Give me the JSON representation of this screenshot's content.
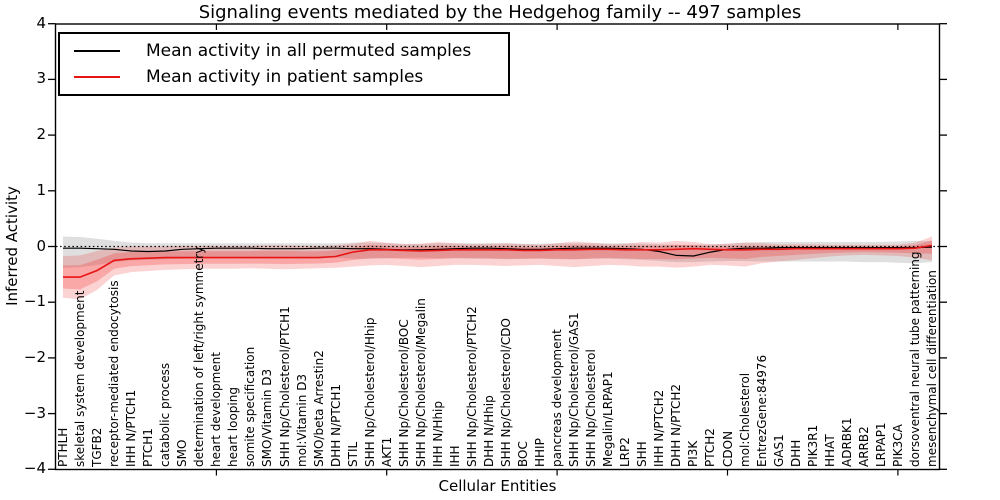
{
  "title": "Signaling events mediated by the Hedgehog family -- 497 samples",
  "legend": {
    "items": [
      {
        "label": "Mean activity in all permuted samples",
        "color": "#000000"
      },
      {
        "label": "Mean activity in patient samples",
        "color": "#e81414"
      }
    ]
  },
  "axes": {
    "ylabel": "Inferred Activity",
    "xlabel": "Cellular Entities",
    "ytick_labels": [
      "4",
      "3",
      "2",
      "1",
      "0",
      "−1",
      "−2",
      "−3",
      "−4"
    ],
    "ytick_values": [
      4,
      3,
      2,
      1,
      0,
      -1,
      -2,
      -3,
      -4
    ]
  },
  "colors": {
    "permuted_line": "#000000",
    "patient_line": "#e81414",
    "permuted_band": "#aaaaaa",
    "patient_band": "#ee2222",
    "zero_line": "#000000",
    "frame": "#000000"
  },
  "chart_data": {
    "type": "line",
    "title": "Signaling events mediated by the Hedgehog family -- 497 samples",
    "xlabel": "Cellular Entities",
    "ylabel": "Inferred Activity",
    "ylim": [
      -4,
      4
    ],
    "grid": false,
    "legend_position": "upper left",
    "zero_reference_line": true,
    "xtick_indices": [
      9,
      19,
      29,
      39,
      49
    ],
    "categories": [
      "PTHLH",
      "skeletal system development",
      "TGFB2",
      "receptor-mediated endocytosis",
      "IHH N/PTCH1",
      "PTCH1",
      "catabolic process",
      "SMO",
      "determination of left/right symmetry",
      "heart development",
      "heart looping",
      "somite specification",
      "SMO/Vitamin D3",
      "SHH Np/Cholesterol/PTCH1",
      "mol:Vitamin D3",
      "SMO/beta Arrestin2",
      "DHH N/PTCH1",
      "STIL",
      "SHH Np/Cholesterol/Hhip",
      "AKT1",
      "SHH Np/Cholesterol/BOC",
      "SHH Np/Cholesterol/Megalin",
      "IHH N/Hhip",
      "IHH",
      "SHH Np/Cholesterol/PTCH2",
      "DHH N/Hhip",
      "SHH Np/Cholesterol/CDO",
      "BOC",
      "HHIP",
      "pancreas development",
      "SHH Np/Cholesterol/GAS1",
      "SHH Np/Cholesterol",
      "Megalin/LRPAP1",
      "LRP2",
      "SHH",
      "IHH N/PTCH2",
      "DHH N/PTCH2",
      "PI3K",
      "PTCH2",
      "CDON",
      "mol:Cholesterol",
      "EntrezGene:84976",
      "GAS1",
      "DHH",
      "PIK3R1",
      "HHAT",
      "ADRBK1",
      "ARRB2",
      "LRPAP1",
      "PIK3CA",
      "dorsoventral neural tube patterning",
      "mesenchymal cell differentiation"
    ],
    "series": [
      {
        "name": "Mean activity in all permuted samples",
        "color": "#000000",
        "values": [
          -0.03,
          -0.03,
          -0.04,
          -0.05,
          -0.08,
          -0.09,
          -0.08,
          -0.05,
          -0.04,
          -0.03,
          -0.03,
          -0.03,
          -0.04,
          -0.04,
          -0.04,
          -0.03,
          -0.03,
          -0.04,
          -0.04,
          -0.05,
          -0.06,
          -0.06,
          -0.05,
          -0.04,
          -0.03,
          -0.03,
          -0.04,
          -0.05,
          -0.05,
          -0.04,
          -0.03,
          -0.03,
          -0.03,
          -0.04,
          -0.05,
          -0.09,
          -0.16,
          -0.17,
          -0.1,
          -0.05,
          -0.03,
          -0.03,
          -0.02,
          -0.02,
          -0.02,
          -0.02,
          -0.02,
          -0.02,
          -0.02,
          -0.02,
          -0.02,
          -0.01
        ],
        "band_upper": [
          0.18,
          0.17,
          0.14,
          0.1,
          0.07,
          0.06,
          0.06,
          0.06,
          0.06,
          0.06,
          0.06,
          0.06,
          0.06,
          0.06,
          0.06,
          0.06,
          0.06,
          0.07,
          0.07,
          0.06,
          0.05,
          0.05,
          0.06,
          0.06,
          0.06,
          0.06,
          0.06,
          0.05,
          0.05,
          0.06,
          0.06,
          0.06,
          0.06,
          0.06,
          0.05,
          0.04,
          0.03,
          0.03,
          0.04,
          0.05,
          0.07,
          0.08,
          0.08,
          0.08,
          0.08,
          0.08,
          0.08,
          0.08,
          0.08,
          0.09,
          0.1,
          0.1
        ],
        "band_lower": [
          -0.38,
          -0.37,
          -0.33,
          -0.28,
          -0.25,
          -0.24,
          -0.23,
          -0.22,
          -0.21,
          -0.2,
          -0.2,
          -0.2,
          -0.21,
          -0.21,
          -0.2,
          -0.2,
          -0.2,
          -0.22,
          -0.22,
          -0.21,
          -0.2,
          -0.2,
          -0.21,
          -0.21,
          -0.22,
          -0.22,
          -0.23,
          -0.22,
          -0.22,
          -0.23,
          -0.23,
          -0.22,
          -0.22,
          -0.23,
          -0.24,
          -0.26,
          -0.28,
          -0.28,
          -0.27,
          -0.26,
          -0.26,
          -0.27,
          -0.27,
          -0.27,
          -0.27,
          -0.27,
          -0.27,
          -0.28,
          -0.28,
          -0.29,
          -0.3,
          -0.28
        ]
      },
      {
        "name": "Mean activity in patient samples",
        "color": "#e81414",
        "values": [
          -0.55,
          -0.55,
          -0.43,
          -0.25,
          -0.22,
          -0.21,
          -0.2,
          -0.2,
          -0.2,
          -0.2,
          -0.2,
          -0.2,
          -0.2,
          -0.2,
          -0.2,
          -0.2,
          -0.18,
          -0.1,
          -0.06,
          -0.06,
          -0.07,
          -0.08,
          -0.07,
          -0.06,
          -0.06,
          -0.06,
          -0.06,
          -0.07,
          -0.07,
          -0.06,
          -0.06,
          -0.05,
          -0.05,
          -0.06,
          -0.06,
          -0.06,
          -0.05,
          -0.04,
          -0.05,
          -0.06,
          -0.06,
          -0.05,
          -0.05,
          -0.04,
          -0.04,
          -0.04,
          -0.04,
          -0.04,
          -0.04,
          -0.04,
          -0.03,
          0.02
        ],
        "band_upper": [
          -0.17,
          -0.16,
          -0.08,
          -0.02,
          0.0,
          0.0,
          0.0,
          0.01,
          0.01,
          0.01,
          0.01,
          0.01,
          0.02,
          0.02,
          0.01,
          0.01,
          0.02,
          0.05,
          0.1,
          0.07,
          0.04,
          0.05,
          0.08,
          0.06,
          0.04,
          0.05,
          0.06,
          0.04,
          0.03,
          0.06,
          0.09,
          0.07,
          0.04,
          0.05,
          0.08,
          0.07,
          0.1,
          0.08,
          0.04,
          0.05,
          0.07,
          0.06,
          0.04,
          0.04,
          0.04,
          0.03,
          0.03,
          0.03,
          0.03,
          0.03,
          0.07,
          0.18
        ],
        "band_lower": [
          -0.92,
          -0.95,
          -0.78,
          -0.52,
          -0.46,
          -0.44,
          -0.42,
          -0.41,
          -0.4,
          -0.4,
          -0.4,
          -0.39,
          -0.4,
          -0.41,
          -0.4,
          -0.39,
          -0.38,
          -0.36,
          -0.34,
          -0.33,
          -0.35,
          -0.37,
          -0.35,
          -0.33,
          -0.33,
          -0.34,
          -0.35,
          -0.34,
          -0.33,
          -0.35,
          -0.37,
          -0.35,
          -0.33,
          -0.34,
          -0.36,
          -0.36,
          -0.38,
          -0.36,
          -0.33,
          -0.34,
          -0.36,
          -0.3,
          -0.27,
          -0.24,
          -0.21,
          -0.18,
          -0.16,
          -0.15,
          -0.16,
          -0.17,
          -0.2,
          -0.25
        ]
      }
    ]
  }
}
